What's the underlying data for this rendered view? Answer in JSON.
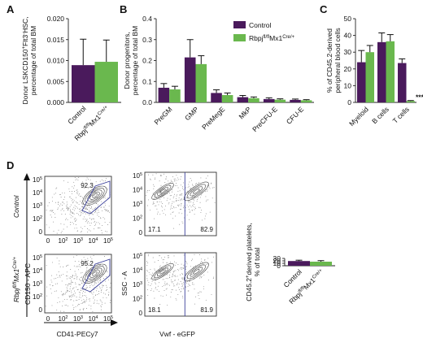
{
  "panel_labels": {
    "A": "A",
    "B": "B",
    "C": "C",
    "D": "D"
  },
  "colors": {
    "control": "#4a1a5c",
    "rbpj": "#6ab84e"
  },
  "legend": {
    "control": "Control",
    "rbpj_base": "Rbpj",
    "rbpj_sup": "fl/fl",
    "rbpj_mid": "Mx1",
    "rbpj_sup2": "Cre/+"
  },
  "chart_data": [
    {
      "id": "A",
      "type": "bar",
      "ylabel_line1": "Donor LSKCD150",
      "ylabel_line1_sup": "+",
      "ylabel_line1_rest": "Flt3",
      "ylabel_line1_sup2": "-",
      "ylabel_line1_end": "HSC,",
      "ylabel_line2": "percentage of total BM",
      "ylim": [
        0,
        0.02
      ],
      "yticks": [
        "0.000",
        "0.005",
        "0.010",
        "0.015",
        "0.020"
      ],
      "categories": [
        "Control",
        "Rbpj"
      ],
      "category_sups": [
        "",
        "fl/fl"
      ],
      "category_mid": [
        "",
        "Mx1"
      ],
      "category_sups2": [
        "",
        "Cre/+"
      ],
      "values": [
        0.0089,
        0.0097
      ],
      "errors": [
        0.0062,
        0.0052
      ]
    },
    {
      "id": "B",
      "type": "bar",
      "ylabel_line1": "Donor progenitors,",
      "ylabel_line2": "percentage of total BM",
      "ylim": [
        0,
        0.4
      ],
      "yticks": [
        "0.0",
        "0.1",
        "0.2",
        "0.3",
        "0.4"
      ],
      "categories": [
        "PreGM",
        "GMP",
        "PreMegE",
        "MkP",
        "PreCFU-E",
        "CFU-E"
      ],
      "series": [
        {
          "name": "Control",
          "values": [
            0.07,
            0.215,
            0.045,
            0.025,
            0.016,
            0.012
          ],
          "errors": [
            0.02,
            0.085,
            0.015,
            0.008,
            0.006,
            0.004
          ]
        },
        {
          "name": "Rbpj",
          "values": [
            0.062,
            0.183,
            0.035,
            0.02,
            0.013,
            0.01
          ],
          "errors": [
            0.015,
            0.04,
            0.01,
            0.006,
            0.004,
            0.003
          ]
        }
      ]
    },
    {
      "id": "C",
      "type": "bar",
      "ylabel_line1": "% of CD45.2-derived",
      "ylabel_line2": "peripheral blood cells",
      "ylim": [
        0,
        50
      ],
      "yticks": [
        "0",
        "10",
        "20",
        "30",
        "40",
        "50"
      ],
      "categories": [
        "Myeloid",
        "B cells",
        "T cells"
      ],
      "annotation": "***",
      "series": [
        {
          "name": "Control",
          "values": [
            24,
            36,
            23.5
          ],
          "errors": [
            7,
            5.5,
            2.5
          ]
        },
        {
          "name": "Rbpj",
          "values": [
            30,
            36.5,
            0.8
          ],
          "errors": [
            4,
            4,
            0.3
          ]
        }
      ]
    },
    {
      "id": "D",
      "type": "bar",
      "ylabel_line1": "CD45.2",
      "ylabel_line1_sup": "+",
      "ylabel_line1_rest": "derived platelets,",
      "ylabel_line2": "% of total",
      "ylim": [
        0,
        30
      ],
      "yticks": [
        "0",
        "10",
        "20",
        "30"
      ],
      "categories": [
        "Control",
        "Rbpj"
      ],
      "category_sups": [
        "",
        "fl/fl"
      ],
      "category_mid": [
        "",
        "Mx1"
      ],
      "category_sups2": [
        "",
        "Cre/+"
      ],
      "values": [
        19.3,
        16.7
      ],
      "errors": [
        3.4,
        4.2
      ]
    }
  ],
  "flow": {
    "row_labels": {
      "control": "Control",
      "rbpj_base": "Rbpj",
      "rbpj_sup": "fl/fl",
      "rbpj_mid": "Mx1",
      "rbpj_sup2": "Cre/+"
    },
    "ylabel_left": "CD150 - APC",
    "xlabel_left": "CD41-PECy7",
    "ylabel_right": "SSC - A",
    "xlabel_right": "Vwf - eGFP",
    "tick_base": "10",
    "left_ticks_y": [
      "5",
      "4",
      "3",
      "2",
      "0"
    ],
    "left_ticks_x": [
      "0",
      "2",
      "3",
      "4",
      "5"
    ],
    "gate_control": "92.3",
    "gate_rbpj": "95.2",
    "vwf_control_neg": "17.1",
    "vwf_control_pos": "82.9",
    "vwf_rbpj_neg": "18.1",
    "vwf_rbpj_pos": "81.9"
  }
}
